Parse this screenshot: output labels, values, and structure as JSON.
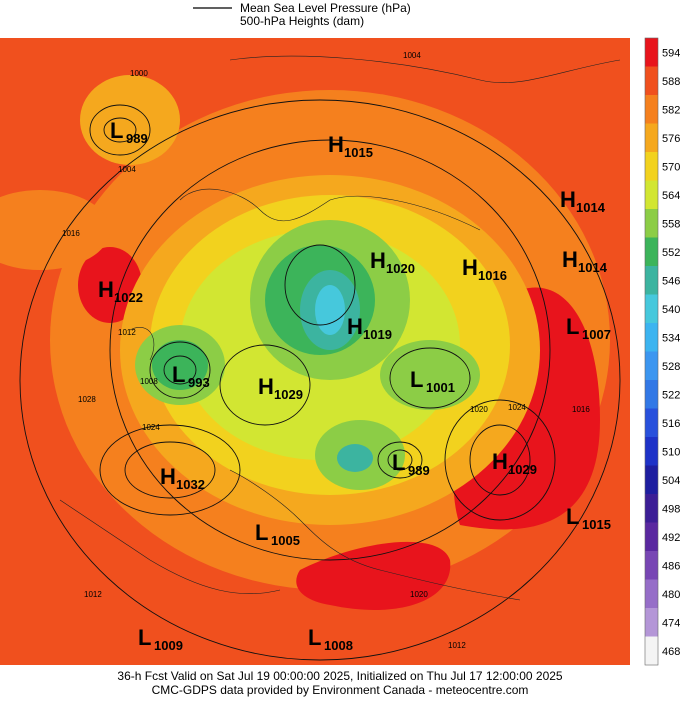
{
  "legend": {
    "line_label": "Mean Sea Level Pressure (hPa)",
    "fill_label": "500-hPa Heights (dam)"
  },
  "colorbar": {
    "ticks": [
      594,
      588,
      582,
      576,
      570,
      564,
      558,
      552,
      546,
      540,
      534,
      528,
      522,
      516,
      510,
      504,
      498,
      492,
      486,
      480,
      474,
      468
    ],
    "colors": [
      "#e8141c",
      "#f0501e",
      "#f5801e",
      "#f5a81e",
      "#f2d21e",
      "#d2e632",
      "#8ccd46",
      "#3cb45a",
      "#3cb4a0",
      "#46c8dc",
      "#3cb4f0",
      "#3c96f0",
      "#3278e6",
      "#2850dc",
      "#1e32c8",
      "#1e1ea0",
      "#3c1e96",
      "#5a28a0",
      "#7846b4",
      "#966ec8",
      "#b496d7",
      "#f4f4f4"
    ]
  },
  "centers": [
    {
      "type": "L",
      "value": 989
    },
    {
      "type": "H",
      "value": 1015
    },
    {
      "type": "H",
      "value": 1014
    },
    {
      "type": "H",
      "value": 1020
    },
    {
      "type": "H",
      "value": 1016
    },
    {
      "type": "H",
      "value": 1014
    },
    {
      "type": "H",
      "value": 1022
    },
    {
      "type": "L",
      "value": 1007
    },
    {
      "type": "H",
      "value": 1019
    },
    {
      "type": "L",
      "value": 993
    },
    {
      "type": "H",
      "value": 1029
    },
    {
      "type": "L",
      "value": 1001
    },
    {
      "type": "H",
      "value": 1032
    },
    {
      "type": "L",
      "value": 989
    },
    {
      "type": "H",
      "value": 1029
    },
    {
      "type": "L",
      "value": 1015
    },
    {
      "type": "L",
      "value": 1005
    },
    {
      "type": "L",
      "value": 1009
    },
    {
      "type": "L",
      "value": 1008
    }
  ],
  "isobar_labels": [
    1000,
    1004,
    1004,
    1016,
    1012,
    1008,
    1028,
    1024,
    1020,
    1024,
    1016,
    1012,
    1020,
    1012
  ],
  "footer": {
    "line1": "36-h Fcst Valid on Sat Jul 19 00:00:00 2025, Initialized on Thu Jul 17 12:00:00 2025",
    "line2": "CMC-GDPS data provided by Environment Canada - meteocentre.com"
  }
}
